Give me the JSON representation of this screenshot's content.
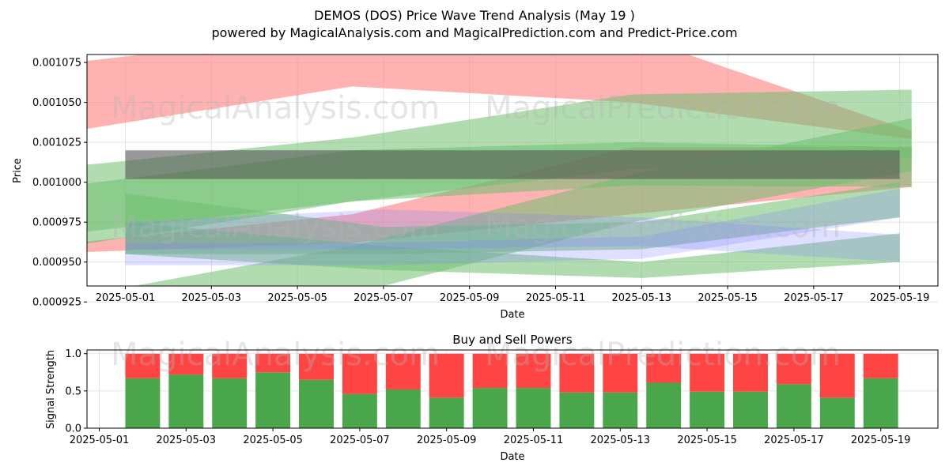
{
  "header": {
    "title": "DEMOS (DOS) Price Wave Trend Analysis (May 19 )",
    "subtitle": "powered by MagicalAnalysis.com and MagicalPrediction.com and Predict-Price.com"
  },
  "watermarks": [
    "MagicalAnalysis.com",
    "MagicalPrediction.com"
  ],
  "colors": {
    "red_band": "#ff7f7f",
    "green_band": "#6fbf6f",
    "blue_band": "#7f7fff",
    "dark_band": "#555555",
    "buy": "#4aa64a",
    "sell": "#ff4444"
  },
  "chart_data": [
    {
      "type": "area",
      "ylabel": "Price",
      "xlabel": "Date",
      "ylim": [
        0.000935,
        0.00108
      ],
      "x_ticks": [
        "2025-05-01",
        "2025-05-03",
        "2025-05-05",
        "2025-05-07",
        "2025-05-09",
        "2025-05-11",
        "2025-05-13",
        "2025-05-15",
        "2025-05-17",
        "2025-05-19"
      ],
      "y_ticks": [
        "0.000925",
        "0.000950",
        "0.000975",
        "0.001000",
        "0.001025",
        "0.001050",
        "0.001075"
      ],
      "grid": true,
      "bands": [
        {
          "color": "red",
          "start": "2025-04-30",
          "end": "2025-05-19",
          "upper": [
            0.001075,
            0.001095,
            0.001092,
            0.001032
          ],
          "lower": [
            0.001032,
            0.00106,
            0.00105,
            0.001027
          ]
        },
        {
          "color": "red",
          "start": "2025-04-30",
          "end": "2025-05-19",
          "upper": [
            0.000962,
            0.00098,
            0.001022,
            0.001022
          ],
          "lower": [
            0.000956,
            0.000962,
            0.00098,
            0.000997
          ]
        },
        {
          "color": "green",
          "start": "2025-04-30",
          "end": "2025-05-19",
          "upper": [
            0.00101,
            0.001028,
            0.001055,
            0.001058
          ],
          "lower": [
            0.000968,
            0.000988,
            0.001008,
            0.001015
          ]
        },
        {
          "color": "green",
          "start": "2025-04-30",
          "end": "2025-05-19",
          "upper": [
            0.000928,
            0.00096,
            0.001005,
            0.00104
          ],
          "lower": [
            0.000895,
            0.00093,
            0.000975,
            0.001007
          ]
        },
        {
          "color": "green",
          "start": "2025-04-30",
          "end": "2025-05-19",
          "upper": [
            0.000998,
            0.00102,
            0.001025,
            0.001022
          ],
          "lower": [
            0.00096,
            0.000988,
            0.000998,
            0.000997
          ]
        },
        {
          "color": "green",
          "start": "2025-05-01",
          "end": "2025-05-19",
          "upper": [
            0.000975,
            0.00096,
            0.00095,
            0.000968
          ],
          "lower": [
            0.000955,
            0.000945,
            0.00094,
            0.00095
          ]
        },
        {
          "color": "green",
          "start": "2025-05-01",
          "end": "2025-05-19",
          "upper": [
            0.000993,
            0.000972,
            0.000975,
            0.001
          ],
          "lower": [
            0.000955,
            0.000955,
            0.000958,
            0.000978
          ]
        },
        {
          "color": "blue",
          "start": "2025-05-01",
          "end": "2025-05-19",
          "upper": [
            0.000975,
            0.000983,
            0.000978,
            0.000967
          ],
          "lower": [
            0.000958,
            0.000958,
            0.00096,
            0.00095
          ]
        },
        {
          "color": "blue",
          "start": "2025-05-01",
          "end": "2025-05-19",
          "upper": [
            0.000962,
            0.000962,
            0.000966,
            0.000996
          ],
          "lower": [
            0.000948,
            0.000948,
            0.000952,
            0.000978
          ]
        },
        {
          "color": "dark",
          "start": "2025-05-01",
          "end": "2025-05-19",
          "upper": [
            0.00102,
            0.00102
          ],
          "lower": [
            0.001002,
            0.001002
          ]
        }
      ]
    },
    {
      "type": "bar",
      "title": "Buy and Sell Powers",
      "xlabel": "Date",
      "ylabel": "Signal Strength",
      "ylim": [
        0,
        1.05
      ],
      "y_ticks": [
        "0.0",
        "0.5",
        "1.0"
      ],
      "x_ticks": [
        "2025-05-01",
        "2025-05-03",
        "2025-05-05",
        "2025-05-07",
        "2025-05-09",
        "2025-05-11",
        "2025-05-13",
        "2025-05-15",
        "2025-05-17",
        "2025-05-19"
      ],
      "categories": [
        "2025-05-02",
        "2025-05-03",
        "2025-05-04",
        "2025-05-05",
        "2025-05-06",
        "2025-05-07",
        "2025-05-08",
        "2025-05-09",
        "2025-05-10",
        "2025-05-11",
        "2025-05-12",
        "2025-05-13",
        "2025-05-14",
        "2025-05-15",
        "2025-05-16",
        "2025-05-17",
        "2025-05-18",
        "2025-05-19"
      ],
      "series": [
        {
          "name": "buy",
          "values": [
            0.67,
            0.72,
            0.67,
            0.75,
            0.65,
            0.46,
            0.52,
            0.41,
            0.54,
            0.54,
            0.48,
            0.48,
            0.61,
            0.49,
            0.49,
            0.59,
            0.41,
            0.67
          ]
        },
        {
          "name": "sell",
          "values": [
            0.33,
            0.28,
            0.33,
            0.25,
            0.35,
            0.54,
            0.48,
            0.59,
            0.46,
            0.46,
            0.52,
            0.52,
            0.39,
            0.51,
            0.51,
            0.41,
            0.59,
            0.33
          ]
        }
      ]
    }
  ]
}
